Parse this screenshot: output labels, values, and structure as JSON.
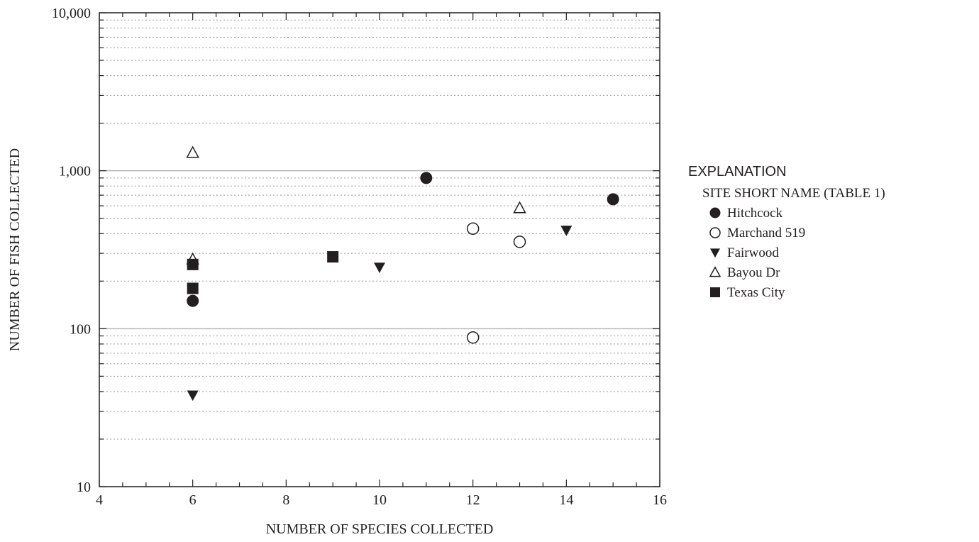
{
  "chart_data": {
    "type": "scatter",
    "xlabel": "NUMBER OF SPECIES COLLECTED",
    "ylabel": "NUMBER OF FISH COLLECTED",
    "xlim": [
      4,
      16
    ],
    "ylim": [
      10,
      10000
    ],
    "y_scale": "log",
    "x_ticks": [
      4,
      6,
      8,
      10,
      12,
      14,
      16
    ],
    "x_tick_labels": [
      "4",
      "6",
      "8",
      "10",
      "12",
      "14",
      "16"
    ],
    "y_ticks": [
      10,
      100,
      1000,
      10000
    ],
    "y_tick_labels": [
      "10",
      "100",
      "1,000",
      "10,000"
    ],
    "grid": {
      "major": "solid",
      "minor": "dotted"
    },
    "legend": {
      "title": "EXPLANATION",
      "subtitle": "SITE SHORT NAME (TABLE 1)",
      "placement": "right"
    },
    "series": [
      {
        "name": "Hitchcock",
        "marker": "filled-circle",
        "color": "#231f20",
        "points": [
          {
            "x": 6,
            "y": 150
          },
          {
            "x": 11,
            "y": 900
          },
          {
            "x": 15,
            "y": 660
          }
        ]
      },
      {
        "name": "Marchand 519",
        "marker": "open-circle",
        "color": "#231f20",
        "points": [
          {
            "x": 12,
            "y": 430
          },
          {
            "x": 12,
            "y": 88
          },
          {
            "x": 13,
            "y": 355
          }
        ]
      },
      {
        "name": "Fairwood",
        "marker": "filled-triangle-down",
        "color": "#231f20",
        "points": [
          {
            "x": 6,
            "y": 38
          },
          {
            "x": 10,
            "y": 245
          },
          {
            "x": 14,
            "y": 420
          }
        ]
      },
      {
        "name": "Bayou Dr",
        "marker": "open-triangle-up",
        "color": "#231f20",
        "points": [
          {
            "x": 6,
            "y": 1300
          },
          {
            "x": 6,
            "y": 275
          },
          {
            "x": 13,
            "y": 580
          }
        ]
      },
      {
        "name": "Texas City",
        "marker": "filled-square",
        "color": "#231f20",
        "points": [
          {
            "x": 6,
            "y": 255
          },
          {
            "x": 6,
            "y": 180
          },
          {
            "x": 9,
            "y": 285
          }
        ]
      }
    ]
  }
}
